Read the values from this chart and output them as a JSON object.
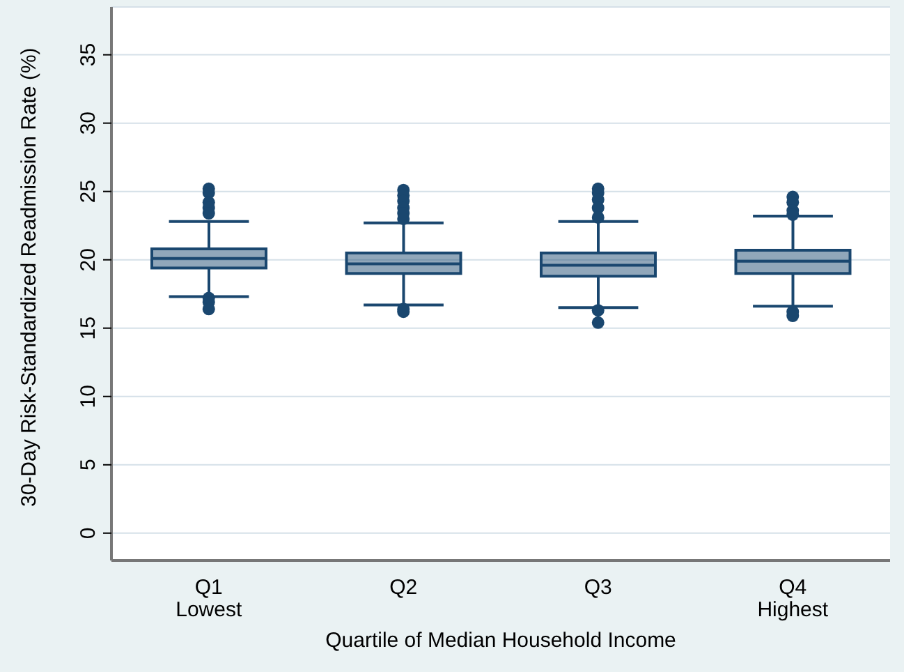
{
  "chart_data": {
    "type": "box",
    "xlabel": "Quartile of Median Household Income",
    "ylabel": "30-Day Risk-Standardized Readmission Rate (%)",
    "categories": [
      "Q1\nLowest",
      "Q2",
      "Q3",
      "Q4\nHighest"
    ],
    "series": [
      {
        "color": "#1a476f",
        "boxes": [
          {
            "low": 17.3,
            "q1": 19.4,
            "median": 20.1,
            "q3": 20.8,
            "high": 22.8,
            "outliers": [
              25.2,
              24.9,
              24.2,
              23.8,
              23.4,
              17.2,
              16.9,
              16.4
            ]
          },
          {
            "low": 16.7,
            "q1": 19.0,
            "median": 19.7,
            "q3": 20.5,
            "high": 22.7,
            "outliers": [
              25.1,
              24.7,
              24.3,
              23.8,
              23.4,
              23.0,
              16.4,
              16.2
            ]
          },
          {
            "low": 16.5,
            "q1": 18.8,
            "median": 19.6,
            "q3": 20.5,
            "high": 22.8,
            "outliers": [
              25.2,
              24.9,
              24.4,
              23.8,
              23.1,
              16.3,
              15.4
            ]
          },
          {
            "low": 16.6,
            "q1": 19.0,
            "median": 19.9,
            "q3": 20.7,
            "high": 23.2,
            "outliers": [
              24.6,
              24.2,
              23.6,
              23.3,
              16.2,
              15.9
            ]
          }
        ]
      }
    ],
    "ylim": [
      -2,
      38.5
    ],
    "yticks": [
      0,
      5,
      10,
      15,
      20,
      25,
      30,
      35
    ],
    "grid": "y",
    "legend": false,
    "marker": "circle"
  }
}
